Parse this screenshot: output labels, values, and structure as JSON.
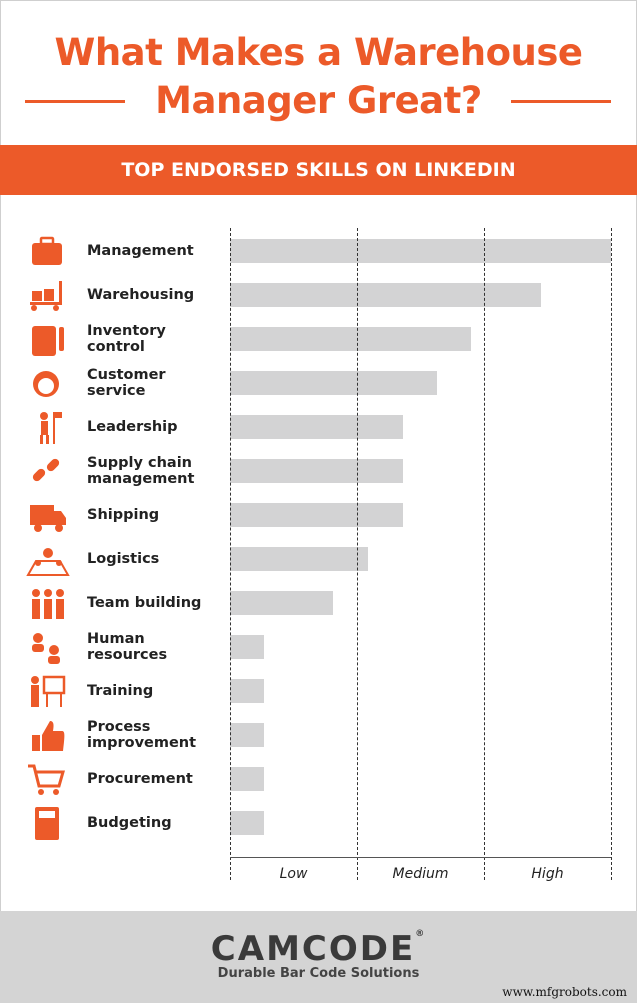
{
  "header": {
    "title_line1": "What Makes a Warehouse",
    "title_line2": "Manager Great?",
    "banner": "TOP ENDORSED SKILLS ON LINKEDIN"
  },
  "colors": {
    "accent": "#ec5a29",
    "bar": "#d3d3d4",
    "footer": "#d4d4d4"
  },
  "chart_data": {
    "type": "bar",
    "orientation": "horizontal",
    "title": "TOP ENDORSED SKILLS ON LINKEDIN",
    "xlabel": "",
    "ylabel": "",
    "scale_labels": [
      "Low",
      "Medium",
      "High"
    ],
    "xlim": [
      0,
      3
    ],
    "grid": true,
    "categories": [
      "Management",
      "Warehousing",
      "Inventory control",
      "Customer service",
      "Leadership",
      "Supply chain management",
      "Shipping",
      "Logistics",
      "Team building",
      "Human resources",
      "Training",
      "Process improvement",
      "Procurement",
      "Budgeting"
    ],
    "icons": [
      "briefcase-icon",
      "hand-truck-icon",
      "clipboard-checklist-icon",
      "headset-agent-icon",
      "person-flag-icon",
      "broken-chain-icon",
      "delivery-truck-icon",
      "map-pins-icon",
      "team-icon",
      "people-exchange-icon",
      "presenter-board-icon",
      "thumbs-up-icon",
      "shopping-cart-icon",
      "calculator-icon"
    ],
    "values": [
      3.0,
      2.45,
      1.9,
      1.63,
      1.36,
      1.36,
      1.36,
      1.09,
      0.81,
      0.27,
      0.27,
      0.27,
      0.27,
      0.27
    ]
  },
  "footer": {
    "logo": "CAMCODE",
    "registered": "®",
    "tagline": "Durable Bar Code Solutions",
    "watermark": "www.mfgrobots.com"
  }
}
